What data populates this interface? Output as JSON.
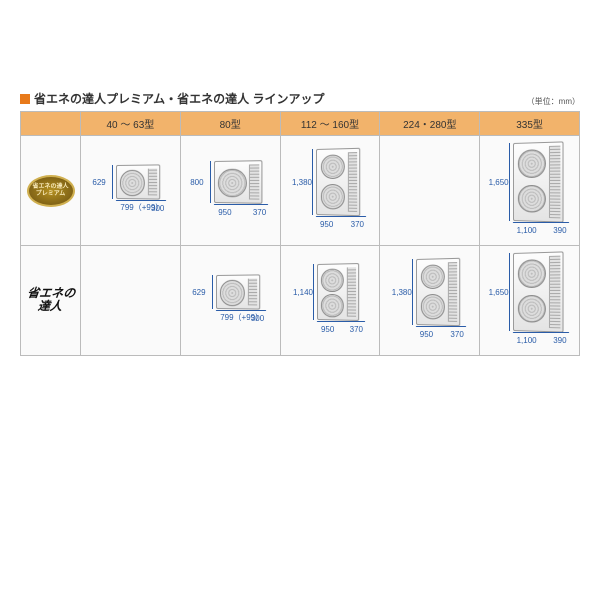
{
  "header": {
    "title": "省エネの達人プレミアム・省エネの達人 ラインアップ",
    "unit_note": "（単位：mm）",
    "bullet_color": "#e87a1a"
  },
  "columns": [
    {
      "label": "40 ～ 63型"
    },
    {
      "label": "80型"
    },
    {
      "label": "112 ～ 160型"
    },
    {
      "label": "224・280型"
    },
    {
      "label": "335型"
    }
  ],
  "rows": [
    {
      "id": "premium",
      "label_line1": "省エネの達人",
      "label_line2": "プレミアム",
      "cells": [
        {
          "type": "single",
          "h": "629",
          "w": "799（+99）",
          "d": "300",
          "bw": 44,
          "bh": 34
        },
        {
          "type": "single",
          "h": "800",
          "w": "950",
          "d": "370",
          "bw": 48,
          "bh": 42
        },
        {
          "type": "double",
          "h": "1,380",
          "w": "950",
          "d": "370",
          "bw": 44,
          "bh": 66
        },
        null,
        {
          "type": "double",
          "h": "1,650",
          "w": "1,100",
          "d": "390",
          "bw": 50,
          "bh": 78
        }
      ]
    },
    {
      "id": "standard",
      "label_text": "省エネの達人",
      "cells": [
        null,
        {
          "type": "single",
          "h": "629",
          "w": "799（+99）",
          "d": "300",
          "bw": 44,
          "bh": 34
        },
        {
          "type": "double",
          "h": "1,140",
          "w": "950",
          "d": "370",
          "bw": 42,
          "bh": 56
        },
        {
          "type": "double",
          "h": "1,380",
          "w": "950",
          "d": "370",
          "bw": 44,
          "bh": 66
        },
        {
          "type": "double",
          "h": "1,650",
          "w": "1,100",
          "d": "390",
          "bw": 50,
          "bh": 78
        }
      ]
    }
  ],
  "colors": {
    "header_bg": "#f2b36b",
    "cell_bg": "#fafafa",
    "border": "#bbbbbb",
    "dim_text": "#2a5ca8"
  }
}
